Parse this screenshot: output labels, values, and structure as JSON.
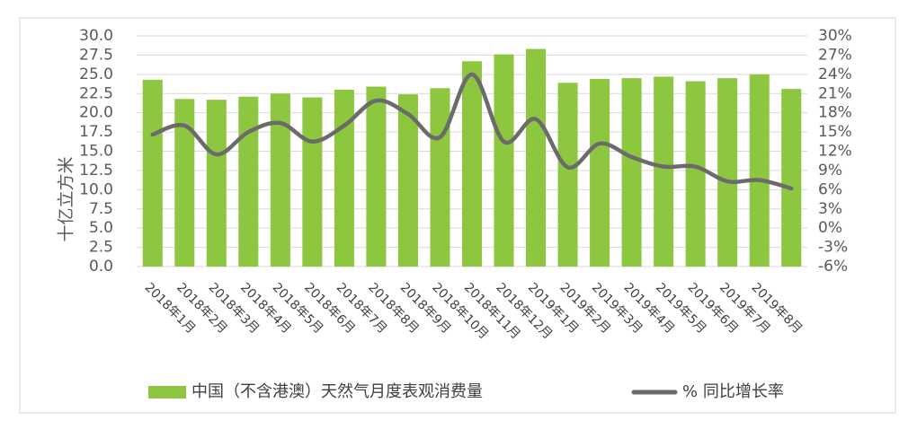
{
  "chart_data": {
    "type": "bar-line",
    "y_label": "十亿立方米",
    "categories": [
      null,
      "2018年1月",
      "2018年2月",
      "2018年3月",
      "2018年4月",
      "2018年5月",
      "2018年6月",
      "2018年7月",
      "2018年8月",
      "2018年9月",
      "2018年10月",
      "2018年11月",
      "2018年12月",
      "2019年1月",
      "2019年2月",
      "2019年3月",
      "2019年4月",
      "2019年5月",
      "2019年6月",
      "2019年7月",
      "2019年8月"
    ],
    "series": [
      {
        "name": "中国（不含港澳）天然气月度表观消费量",
        "type": "bar",
        "color": "#8dc63f",
        "values": [
          24.3,
          21.8,
          21.7,
          22.1,
          22.5,
          22.0,
          23.0,
          23.4,
          22.4,
          23.2,
          26.7,
          27.6,
          28.3,
          23.9,
          24.4,
          24.5,
          24.7,
          24.1,
          24.5,
          25.0,
          23.1
        ]
      },
      {
        "name": "% 同比增长率",
        "type": "line",
        "axis": "y2",
        "color": "#6b6b6b",
        "values": [
          14.6,
          16.0,
          11.5,
          15.0,
          16.4,
          13.5,
          16.0,
          19.9,
          17.8,
          14.2,
          24.0,
          13.5,
          17.0,
          9.5,
          13.2,
          11.1,
          9.6,
          9.6,
          7.3,
          7.5,
          6.2
        ]
      }
    ],
    "ylim": [
      0,
      30
    ],
    "yticks": [
      {
        "value": 0,
        "label": "0.0"
      },
      {
        "value": 2.5,
        "label": "2.5"
      },
      {
        "value": 5,
        "label": "5.0"
      },
      {
        "value": 7.5,
        "label": "7.5"
      },
      {
        "value": 10,
        "label": "10.0"
      },
      {
        "value": 12.5,
        "label": "12.5"
      },
      {
        "value": 15,
        "label": "15.0"
      },
      {
        "value": 17.5,
        "label": "17.5"
      },
      {
        "value": 20,
        "label": "20.0"
      },
      {
        "value": 22.5,
        "label": "22.5"
      },
      {
        "value": 25,
        "label": "25.0"
      },
      {
        "value": 27.5,
        "label": "27.5"
      },
      {
        "value": 30,
        "label": "30.0"
      }
    ],
    "y2lim": [
      -6,
      30
    ],
    "y2ticks": [
      {
        "value": -6,
        "label": "-6%"
      },
      {
        "value": -3,
        "label": "-3%"
      },
      {
        "value": 0,
        "label": "0%"
      },
      {
        "value": 3,
        "label": "3%"
      },
      {
        "value": 6,
        "label": "6%"
      },
      {
        "value": 9,
        "label": "9%"
      },
      {
        "value": 12,
        "label": "12%"
      },
      {
        "value": 15,
        "label": "15%"
      },
      {
        "value": 18,
        "label": "18%"
      },
      {
        "value": 21,
        "label": "21%"
      },
      {
        "value": 24,
        "label": "24%"
      },
      {
        "value": 27,
        "label": "27%"
      },
      {
        "value": 30,
        "label": "30%"
      }
    ],
    "grid": true,
    "legend": "bottom"
  }
}
